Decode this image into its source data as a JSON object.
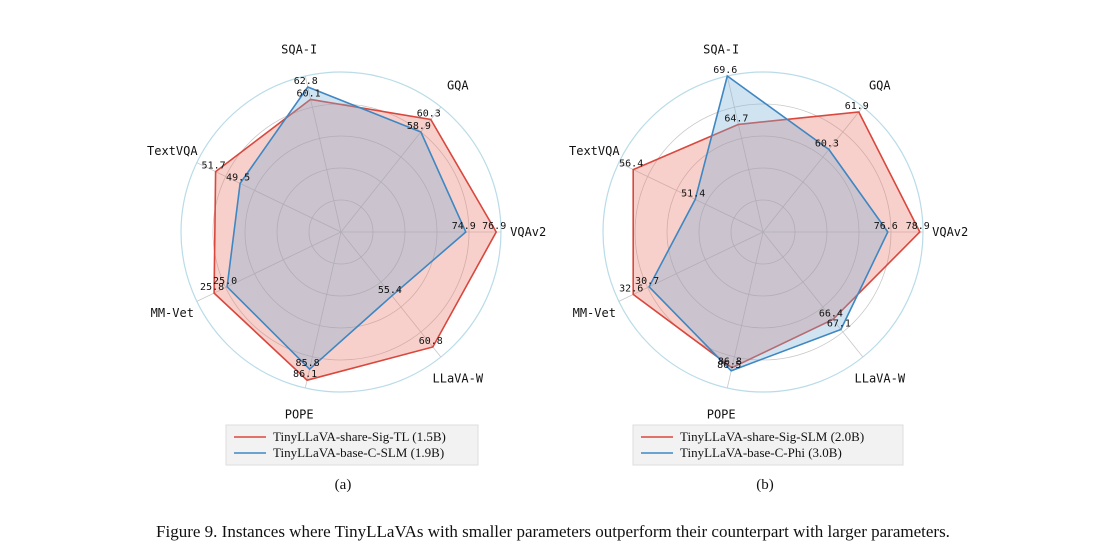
{
  "chart_data": [
    {
      "type": "radar",
      "subplot_label": "(a)",
      "axes": [
        "SQA-I",
        "GQA",
        "VQAv2",
        "LLaVA-W",
        "POPE",
        "MM-Vet",
        "TextVQA"
      ],
      "series": [
        {
          "name": "TinyLLaVA-share-Sig-TL (1.5B)",
          "color": "#d9473d",
          "fill": "rgba(232,120,105,0.35)",
          "values": [
            60.1,
            60.3,
            76.9,
            60.8,
            86.1,
            25.8,
            51.7
          ],
          "labels": [
            "60.1",
            "60.3",
            "76.9",
            "60.8",
            "86.1",
            "25.8",
            "51.7"
          ]
        },
        {
          "name": "TinyLLaVA-base-C-SLM (1.9B)",
          "color": "#3f87c2",
          "fill": "rgba(120,175,215,0.35)",
          "values": [
            62.8,
            58.9,
            74.9,
            55.4,
            85.8,
            25.0,
            49.5
          ],
          "labels": [
            "62.8",
            "58.9",
            "74.9",
            "55.4",
            "85.8",
            "25.0",
            "49.5"
          ]
        }
      ],
      "radii": [
        0.85,
        0.9,
        0.97,
        0.92,
        0.95,
        0.88,
        0.87
      ],
      "radii2": [
        0.93,
        0.8,
        0.78,
        0.51,
        0.88,
        0.79,
        0.7
      ]
    },
    {
      "type": "radar",
      "subplot_label": "(b)",
      "axes": [
        "SQA-I",
        "GQA",
        "VQAv2",
        "LLaVA-W",
        "POPE",
        "MM-Vet",
        "TextVQA"
      ],
      "series": [
        {
          "name": "TinyLLaVA-share-Sig-SLM (2.0B)",
          "color": "#d9473d",
          "fill": "rgba(232,120,105,0.35)",
          "values": [
            64.7,
            61.9,
            78.9,
            66.4,
            86.8,
            32.6,
            56.4
          ],
          "labels": [
            "64.7",
            "61.9",
            "78.9",
            "66.4",
            "86.8",
            "32.6",
            "56.4"
          ]
        },
        {
          "name": "TinyLLaVA-base-C-Phi (3.0B)",
          "color": "#3f87c2",
          "fill": "rgba(120,175,215,0.35)",
          "values": [
            69.6,
            60.3,
            76.6,
            67.1,
            86.5,
            30.7,
            51.4
          ],
          "labels": [
            "69.6",
            "60.3",
            "76.6",
            "67.1",
            "86.5",
            "30.7",
            "51.4"
          ]
        }
      ],
      "radii": [
        0.69,
        0.96,
        0.98,
        0.7,
        0.87,
        0.9,
        0.9
      ],
      "radii2": [
        1.0,
        0.66,
        0.78,
        0.78,
        0.89,
        0.79,
        0.47
      ]
    }
  ],
  "caption": "Figure 9. Instances where TinyLLaVAs with smaller parameters outperform their counterpart with larger parameters."
}
